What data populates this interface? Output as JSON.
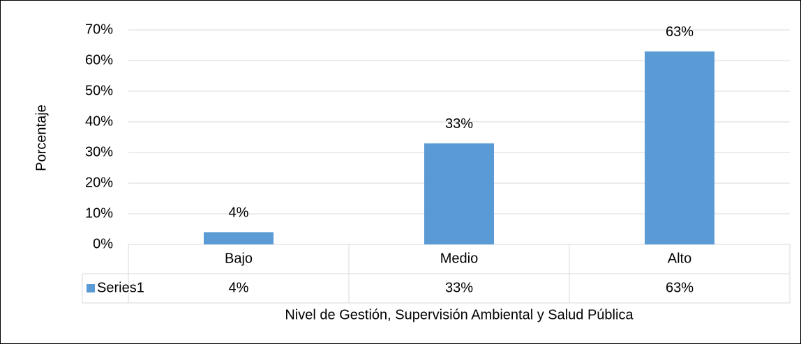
{
  "chart_data": {
    "type": "bar",
    "x_label": "Nivel de Gestión, Supervisión Ambiental y Salud Pública",
    "y_label": "Porcentaje",
    "categories": [
      "Bajo",
      "Medio",
      "Alto"
    ],
    "series": [
      {
        "name": "Series1",
        "color": "#5b9bd5",
        "values": [
          4,
          33,
          63
        ],
        "value_labels": [
          "4%",
          "33%",
          "63%"
        ]
      }
    ],
    "ylim": [
      0,
      70
    ],
    "yticks": [
      {
        "value": 0,
        "label": "0%"
      },
      {
        "value": 10,
        "label": "10%"
      },
      {
        "value": 20,
        "label": "20%"
      },
      {
        "value": 30,
        "label": "30%"
      },
      {
        "value": 40,
        "label": "40%"
      },
      {
        "value": 50,
        "label": "50%"
      },
      {
        "value": 60,
        "label": "60%"
      },
      {
        "value": 70,
        "label": "70%"
      }
    ],
    "grid": true,
    "data_table": true
  }
}
